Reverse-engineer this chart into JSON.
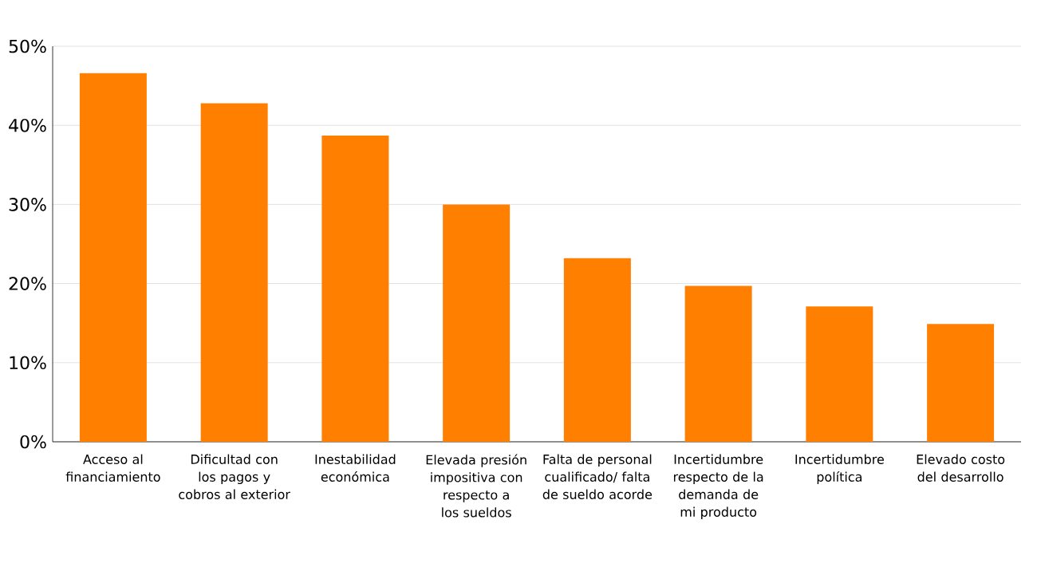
{
  "chart_data": {
    "type": "bar",
    "categories": [
      "Acceso al financiamiento",
      "Dificultad con los pagos y cobros al exterior",
      "Inestabilidad económica",
      "Elevada presión impositiva con respecto a los sueldos",
      "Falta de personal cualificado/ falta de sueldo acorde",
      "Incertidumbre respecto de la demanda de mi producto",
      "Incertidumbre política",
      "Elevado costo del desarrollo"
    ],
    "values": [
      46.6,
      42.8,
      38.7,
      30.0,
      23.2,
      19.7,
      17.1,
      14.9
    ],
    "color": "#ff7f00",
    "ylim": [
      0,
      50
    ],
    "yticks": [
      {
        "value": 0,
        "label": "0%"
      },
      {
        "value": 10,
        "label": "10%"
      },
      {
        "value": 20,
        "label": "20%"
      },
      {
        "value": 30,
        "label": "30%"
      },
      {
        "value": 40,
        "label": "40%"
      },
      {
        "value": 50,
        "label": "50%"
      }
    ],
    "grid": "y"
  }
}
